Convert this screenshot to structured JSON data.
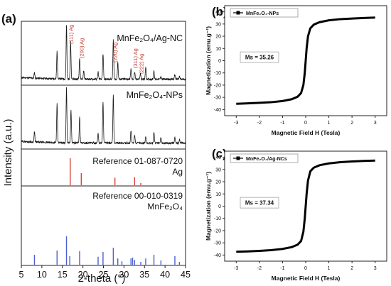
{
  "panel_labels": {
    "a": "(a)",
    "b": "(b)",
    "c": "(c)"
  },
  "xrd": {
    "x_label": "2-theta (°)",
    "y_label": "Intensity (a.u.)",
    "x_ticks": [
      "5",
      "10",
      "15",
      "20",
      "25",
      "30",
      "35",
      "40",
      "45"
    ],
    "subpanels": {
      "ag_nc": {
        "label": "MnFe₂O₄/Ag-NC",
        "ag_peak_labels": [
          "(111) Ag",
          "(200) Ag",
          "(220) Ag",
          "(311) Ag",
          "(222) Ag"
        ]
      },
      "nps": {
        "label": "MnFe₂O₄-NPs"
      },
      "ref_ag": {
        "label": "Reference 01-087-0720",
        "sublabel": "Ag",
        "color": "#d9403a"
      },
      "ref_mnfe": {
        "label": "Reference 00-010-0319",
        "sublabel": "MnFe₂O₄",
        "color": "#4a5fd0"
      }
    }
  },
  "hyst_b": {
    "legend": "MnFe₂O₄-NPs",
    "ms_label": "Ms = 35.26",
    "x_label": "Magnetic Field H (Tesla)",
    "y_label": "Magnetization (emu.g⁻¹)",
    "x_ticks": [
      "-3",
      "-2",
      "-1",
      "0",
      "1",
      "2",
      "3"
    ],
    "y_ticks": [
      "-40",
      "-30",
      "-20",
      "-10",
      "0",
      "10",
      "20",
      "30",
      "40"
    ]
  },
  "hyst_c": {
    "legend": "MnFe₂O₄/Ag-NCs",
    "ms_label": "Ms = 37.34",
    "x_label": "Magnetic Field H (Tesla)",
    "y_label": "Magnetization (emu.g⁻¹)",
    "x_ticks": [
      "-3",
      "-2",
      "-1",
      "0",
      "1",
      "2",
      "3"
    ],
    "y_ticks": [
      "-40",
      "-30",
      "-20",
      "-10",
      "0",
      "10",
      "20",
      "30",
      "40"
    ]
  },
  "chart_data": [
    {
      "type": "line",
      "panel": "a-top",
      "series": [
        {
          "name": "MnFe₂O₄/Ag-NC",
          "peaks": [
            [
              8.2,
              0.1
            ],
            [
              13.7,
              0.48
            ],
            [
              16.0,
              0.95
            ],
            [
              17.0,
              0.65
            ],
            [
              19.2,
              0.38
            ],
            [
              20.2,
              0.15
            ],
            [
              23.7,
              0.13
            ],
            [
              24.9,
              0.45
            ],
            [
              27.4,
              0.7
            ],
            [
              28.5,
              0.3
            ],
            [
              31.7,
              0.18
            ],
            [
              32.6,
              0.12
            ],
            [
              34.0,
              0.1
            ],
            [
              35.3,
              0.22
            ],
            [
              37.3,
              0.15
            ],
            [
              39.0,
              0.06
            ],
            [
              42.4,
              0.08
            ],
            [
              43.5,
              0.05
            ]
          ]
        }
      ],
      "xlim": [
        5,
        45
      ]
    },
    {
      "type": "line",
      "panel": "a-middle",
      "series": [
        {
          "name": "MnFe₂O₄-NPs",
          "peaks": [
            [
              8.2,
              0.18
            ],
            [
              13.7,
              0.68
            ],
            [
              16.0,
              0.98
            ],
            [
              17.1,
              0.58
            ],
            [
              19.2,
              0.45
            ],
            [
              23.7,
              0.17
            ],
            [
              24.9,
              0.72
            ],
            [
              27.4,
              0.85
            ],
            [
              31.7,
              0.22
            ],
            [
              32.6,
              0.15
            ],
            [
              35.3,
              0.12
            ],
            [
              37.3,
              0.2
            ],
            [
              39.0,
              0.1
            ],
            [
              42.4,
              0.1
            ],
            [
              43.5,
              0.06
            ]
          ]
        }
      ],
      "xlim": [
        5,
        45
      ]
    },
    {
      "type": "bar",
      "panel": "a-ref-ag",
      "series": [
        {
          "name": "Ag",
          "x": [
            16.9,
            19.6,
            27.8,
            32.6,
            34.1
          ],
          "values": [
            1.0,
            0.45,
            0.28,
            0.3,
            0.08
          ]
        }
      ],
      "xlim": [
        5,
        45
      ]
    },
    {
      "type": "bar",
      "panel": "a-ref-mnfe2o4",
      "series": [
        {
          "name": "MnFe₂O₄",
          "x": [
            8.2,
            13.7,
            16.0,
            16.8,
            19.2,
            23.7,
            24.9,
            27.4,
            28.5,
            29.5,
            31.7,
            32.1,
            32.6,
            34.1,
            35.3,
            37.3,
            39.0,
            42.4,
            43.5
          ],
          "values": [
            0.35,
            0.5,
            1.0,
            0.3,
            0.48,
            0.28,
            0.45,
            0.6,
            0.22,
            0.12,
            0.22,
            0.25,
            0.17,
            0.1,
            0.22,
            0.35,
            0.15,
            0.3,
            0.1
          ]
        }
      ],
      "xlim": [
        5,
        45
      ]
    },
    {
      "type": "line",
      "panel": "b",
      "series": [
        {
          "name": "MnFe₂O₄-NPs",
          "x": [
            -3,
            -2.5,
            -2,
            -1.5,
            -1,
            -0.6,
            -0.35,
            -0.2,
            -0.1,
            -0.04,
            0,
            0.04,
            0.1,
            0.2,
            0.35,
            0.6,
            1,
            1.5,
            2,
            2.5,
            3
          ],
          "y": [
            -35.26,
            -34.9,
            -34.5,
            -34.0,
            -33.0,
            -31.5,
            -29.5,
            -26.5,
            -20,
            -10,
            0,
            10,
            20,
            26.5,
            29.5,
            31.5,
            33.0,
            34.0,
            34.5,
            34.9,
            35.26
          ]
        }
      ],
      "xlim": [
        -3.5,
        3.5
      ],
      "ylim": [
        -45,
        45
      ]
    },
    {
      "type": "line",
      "panel": "c",
      "series": [
        {
          "name": "MnFe₂O₄/Ag-NCs",
          "x": [
            -3,
            -2.5,
            -2,
            -1.5,
            -1,
            -0.6,
            -0.35,
            -0.2,
            -0.1,
            -0.04,
            0,
            0.04,
            0.1,
            0.2,
            0.35,
            0.6,
            1,
            1.5,
            2,
            2.5,
            3
          ],
          "y": [
            -37.34,
            -37.0,
            -36.6,
            -36.0,
            -35.0,
            -33.5,
            -31.5,
            -28.5,
            -21,
            -10,
            0,
            10,
            21,
            28.5,
            31.5,
            33.5,
            35.0,
            36.0,
            36.6,
            37.0,
            37.34
          ]
        }
      ],
      "xlim": [
        -3.5,
        3.5
      ],
      "ylim": [
        -45,
        45
      ]
    }
  ]
}
